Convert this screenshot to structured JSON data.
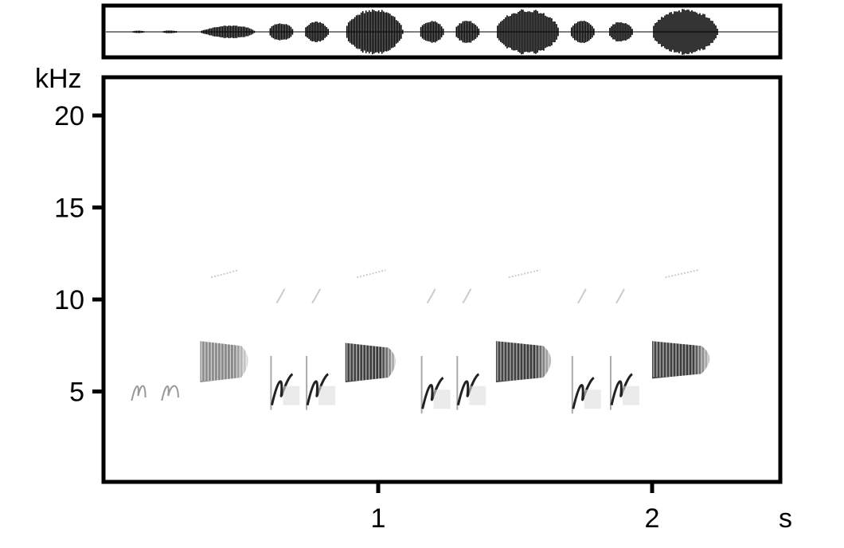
{
  "chart_data": {
    "type": "spectrogram",
    "title": "",
    "xlabel": "s",
    "ylabel": "kHz",
    "xlim": [
      0,
      2.47
    ],
    "ylim": [
      0,
      22
    ],
    "xticks": [
      1,
      2
    ],
    "yticks": [
      5,
      10,
      15,
      20
    ],
    "grid": false,
    "colormap": "grayscale",
    "oscillogram": true,
    "syllables": [
      {
        "type": "note",
        "start": 0.1,
        "end": 0.15,
        "fmin": 4.5,
        "fmax": 5.5,
        "amplitude": 0.03
      },
      {
        "type": "note",
        "start": 0.21,
        "end": 0.27,
        "fmin": 4.5,
        "fmax": 5.5,
        "amplitude": 0.06
      },
      {
        "type": "buzz",
        "start": 0.35,
        "end": 0.55,
        "fmin": 5.5,
        "fmax": 8.0,
        "amplitude": 0.35
      },
      {
        "type": "hook",
        "start": 0.6,
        "end": 0.69,
        "fmin": 4.0,
        "fmax": 6.5,
        "amplitude": 0.4
      },
      {
        "type": "hook",
        "start": 0.73,
        "end": 0.82,
        "fmin": 4.0,
        "fmax": 6.5,
        "amplitude": 0.45
      },
      {
        "type": "buzz",
        "start": 0.88,
        "end": 1.09,
        "fmin": 5.5,
        "fmax": 7.9,
        "amplitude": 1.0
      },
      {
        "type": "hook",
        "start": 1.15,
        "end": 1.24,
        "fmin": 3.8,
        "fmax": 6.5,
        "amplitude": 0.5
      },
      {
        "type": "hook",
        "start": 1.28,
        "end": 1.37,
        "fmin": 4.0,
        "fmax": 6.5,
        "amplitude": 0.5
      },
      {
        "type": "buzz",
        "start": 1.43,
        "end": 1.66,
        "fmin": 5.5,
        "fmax": 8.0,
        "amplitude": 1.0
      },
      {
        "type": "hook",
        "start": 1.7,
        "end": 1.79,
        "fmin": 3.8,
        "fmax": 6.5,
        "amplitude": 0.5
      },
      {
        "type": "hook",
        "start": 1.84,
        "end": 1.93,
        "fmin": 4.0,
        "fmax": 6.5,
        "amplitude": 0.45
      },
      {
        "type": "buzz",
        "start": 2.0,
        "end": 2.24,
        "fmin": 5.7,
        "fmax": 8.0,
        "amplitude": 1.0
      }
    ],
    "colors": {
      "ink": "#000000",
      "background": "#ffffff"
    }
  }
}
